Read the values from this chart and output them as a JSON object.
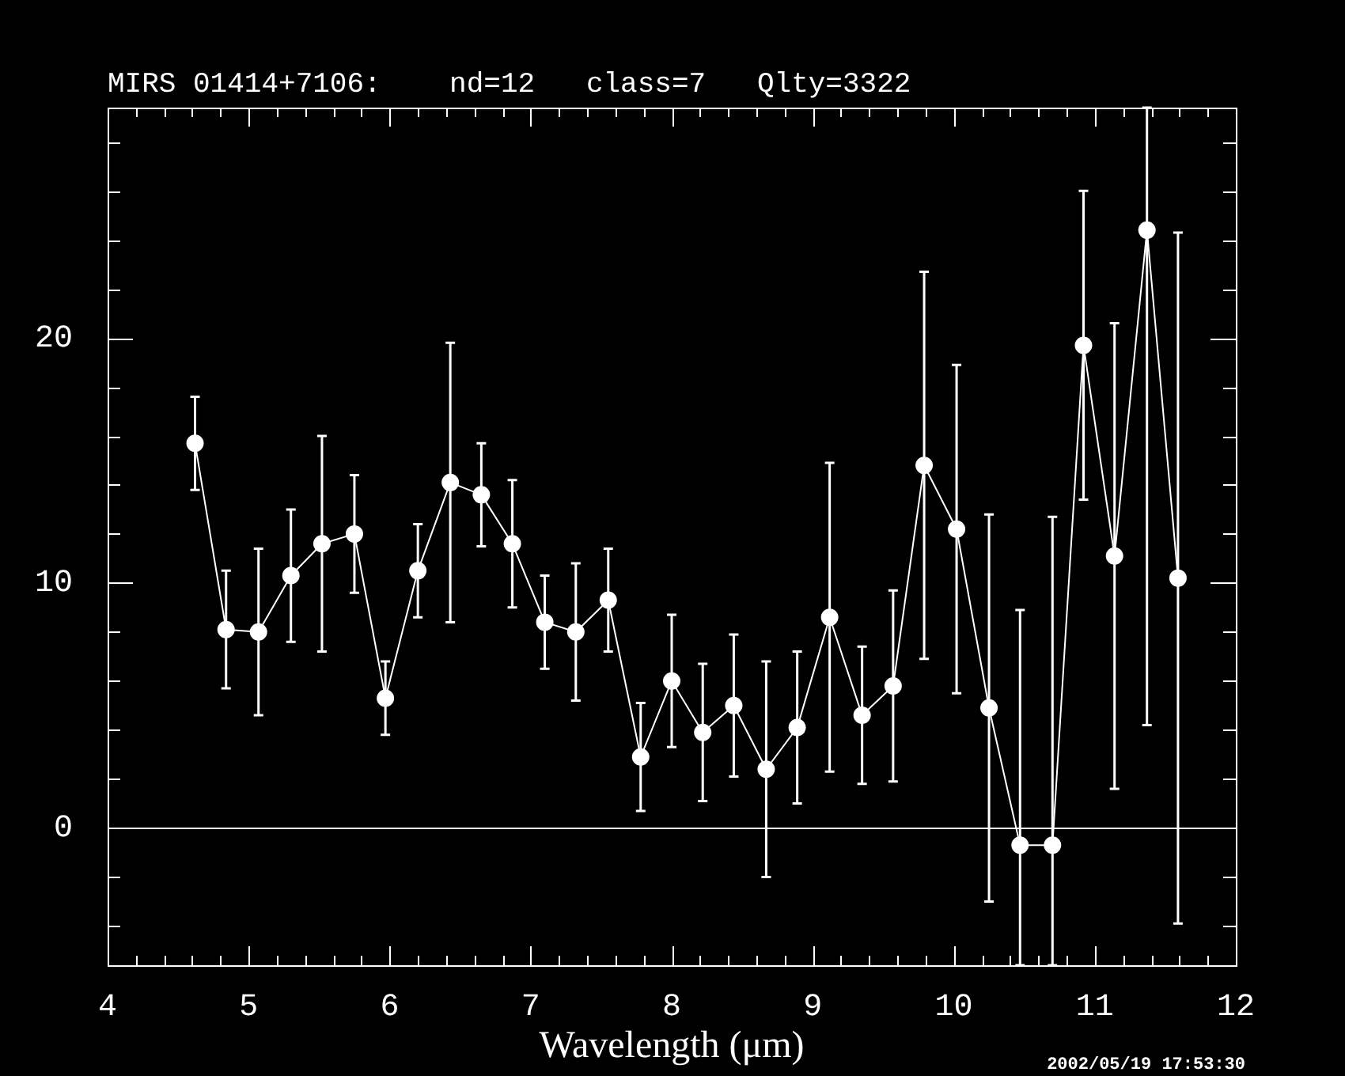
{
  "chart_data": {
    "type": "line",
    "title": "MIRS 01414+7106:    nd=12   class=7   Qlty=3322",
    "xlabel": "Wavelength (μm)",
    "x": [
      4.62,
      4.84,
      5.07,
      5.3,
      5.52,
      5.75,
      5.97,
      6.2,
      6.43,
      6.65,
      6.87,
      7.1,
      7.32,
      7.55,
      7.78,
      8.0,
      8.22,
      8.44,
      8.67,
      8.89,
      9.12,
      9.35,
      9.57,
      9.79,
      10.02,
      10.25,
      10.47,
      10.7,
      10.92,
      11.14,
      11.37,
      11.59
    ],
    "series": [
      {
        "color": "#ffffff",
        "values": [
          15.7,
          8.1,
          8.0,
          10.3,
          11.6,
          12.0,
          5.3,
          10.5,
          14.1,
          13.6,
          11.6,
          8.4,
          8.0,
          9.3,
          2.9,
          6.0,
          3.9,
          5.0,
          2.4,
          4.1,
          8.6,
          4.6,
          5.8,
          14.8,
          12.2,
          4.9,
          -0.7,
          -0.7,
          19.7,
          11.1,
          24.4,
          10.2
        ],
        "errors": [
          1.9,
          2.4,
          3.4,
          2.7,
          4.4,
          2.4,
          1.5,
          1.9,
          5.7,
          2.1,
          2.6,
          1.9,
          2.8,
          2.1,
          2.2,
          2.7,
          2.8,
          2.9,
          4.4,
          3.1,
          6.3,
          2.8,
          3.9,
          7.9,
          6.7,
          7.9,
          [
            -5.6,
            8.9
          ],
          [
            -5.6,
            12.7
          ],
          6.3,
          9.5,
          [
            4.2,
            29.4
          ],
          14.1
        ]
      }
    ],
    "xlim": [
      4,
      12
    ],
    "ylim": [
      -5.6,
      29.4
    ],
    "xticks": [
      4,
      {
        "value": 4.2,
        "label": null
      },
      {
        "value": 4.4,
        "label": null
      },
      {
        "value": 4.6,
        "label": null
      },
      {
        "value": 4.8,
        "label": null
      },
      5,
      {
        "value": 5.2,
        "label": null
      },
      {
        "value": 5.4,
        "label": null
      },
      {
        "value": 5.6,
        "label": null
      },
      {
        "value": 5.8,
        "label": null
      },
      6,
      {
        "value": 6.2,
        "label": null
      },
      {
        "value": 6.4,
        "label": null
      },
      {
        "value": 6.6,
        "label": null
      },
      {
        "value": 6.8,
        "label": null
      },
      7,
      {
        "value": 7.2,
        "label": null
      },
      {
        "value": 7.4,
        "label": null
      },
      {
        "value": 7.6,
        "label": null
      },
      {
        "value": 7.8,
        "label": null
      },
      8,
      {
        "value": 8.2,
        "label": null
      },
      {
        "value": 8.4,
        "label": null
      },
      {
        "value": 8.6,
        "label": null
      },
      {
        "value": 8.8,
        "label": null
      },
      9,
      {
        "value": 9.2,
        "label": null
      },
      {
        "value": 9.4,
        "label": null
      },
      {
        "value": 9.6,
        "label": null
      },
      {
        "value": 9.8,
        "label": null
      },
      10,
      {
        "value": 10.2,
        "label": null
      },
      {
        "value": 10.4,
        "label": null
      },
      {
        "value": 10.6,
        "label": null
      },
      {
        "value": 10.8,
        "label": null
      },
      11,
      {
        "value": 11.2,
        "label": null
      },
      {
        "value": 11.4,
        "label": null
      },
      {
        "value": 11.6,
        "label": null
      },
      {
        "value": 11.8,
        "label": null
      },
      12
    ],
    "yticks": [
      {
        "value": -4,
        "label": null
      },
      {
        "value": -2,
        "label": null
      },
      0,
      {
        "value": 2,
        "label": null
      },
      {
        "value": 4,
        "label": null
      },
      {
        "value": 6,
        "label": null
      },
      {
        "value": 8,
        "label": null
      },
      10,
      {
        "value": 12,
        "label": null
      },
      {
        "value": 14,
        "label": null
      },
      {
        "value": 16,
        "label": null
      },
      {
        "value": 18,
        "label": null
      },
      20,
      {
        "value": 22,
        "label": null
      },
      {
        "value": 24,
        "label": null
      },
      {
        "value": 26,
        "label": null
      },
      {
        "value": 28,
        "label": null
      }
    ],
    "ref_lines": [
      {
        "axis": "y",
        "value": 0,
        "color": "#ffffff"
      }
    ],
    "marker": "circle",
    "grid": false,
    "legend": false,
    "annotations": [
      "2002/05/19 17:53:30"
    ]
  }
}
